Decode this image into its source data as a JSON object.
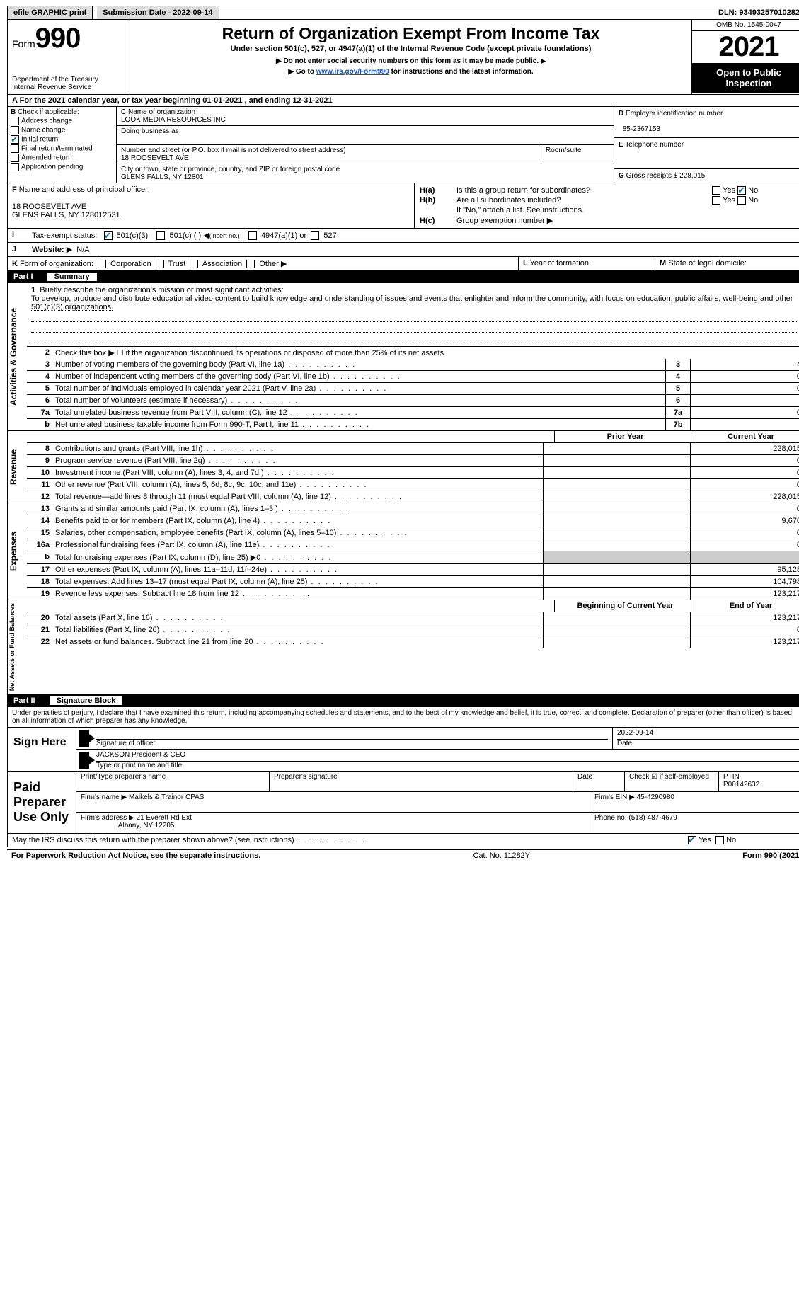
{
  "top": {
    "efile": "efile GRAPHIC print",
    "submission": "Submission Date - 2022-09-14",
    "dln": "DLN: 93493257010282"
  },
  "header": {
    "form_prefix": "Form",
    "form_number": "990",
    "dept": "Department of the Treasury",
    "irs": "Internal Revenue Service",
    "title": "Return of Organization Exempt From Income Tax",
    "subtitle": "Under section 501(c), 527, or 4947(a)(1) of the Internal Revenue Code (except private foundations)",
    "note1": "Do not enter social security numbers on this form as it may be made public.",
    "note2_pre": "Go to ",
    "note2_link": "www.irs.gov/Form990",
    "note2_post": " for instructions and the latest information.",
    "omb": "OMB No. 1545-0047",
    "year": "2021",
    "open": "Open to Public Inspection"
  },
  "row_a": "For the 2021 calendar year, or tax year beginning 01-01-2021    , and ending 12-31-2021",
  "section_b": {
    "heading": "Check if applicable:",
    "addr_change": "Address change",
    "name_change": "Name change",
    "initial": "Initial return",
    "final": "Final return/terminated",
    "amended": "Amended return",
    "app_pending": "Application pending",
    "c_label": "Name of organization",
    "c_name": "LOOK MEDIA RESOURCES INC",
    "dba_label": "Doing business as",
    "street_label": "Number and street (or P.O. box if mail is not delivered to street address)",
    "street": "18 ROOSEVELT AVE",
    "room_label": "Room/suite",
    "city_label": "City or town, state or province, country, and ZIP or foreign postal code",
    "city": "GLENS FALLS, NY  12801",
    "d_label": "Employer identification number",
    "d_ein": "85-2367153",
    "e_label": "Telephone number",
    "g_label": "Gross receipts $",
    "g_value": "228,015"
  },
  "section_f": {
    "f_label": "Name and address of principal officer:",
    "f_addr1": "18 ROOSEVELT AVE",
    "f_addr2": "GLENS FALLS, NY  128012531",
    "ha_label": "Is this a group return for subordinates?",
    "hb_label": "Are all subordinates included?",
    "hb_note": "If \"No,\" attach a list. See instructions.",
    "hc_label": "Group exemption number"
  },
  "row_i": {
    "label": "Tax-exempt status:",
    "opt1": "501(c)(3)",
    "opt2": "501(c) (   )",
    "opt2_note": "(insert no.)",
    "opt3": "4947(a)(1) or",
    "opt4": "527"
  },
  "row_j": {
    "label": "Website:",
    "value": "N/A"
  },
  "row_k": {
    "label": "Form of organization:",
    "corp": "Corporation",
    "trust": "Trust",
    "assoc": "Association",
    "other": "Other",
    "l_label": "Year of formation:",
    "m_label": "State of legal domicile:"
  },
  "part1": {
    "header_label": "Part I",
    "header_title": "Summary",
    "side_ag": "Activities & Governance",
    "side_rev": "Revenue",
    "side_exp": "Expenses",
    "side_na": "Net Assets or Fund Balances",
    "q1_label": "Briefly describe the organization's mission or most significant activities:",
    "q1_text": "To develop, produce and distribute educational video content to build knowledge and understanding of issues and events that enlightenand inform the community, with focus on education, public affairs, well-being and other 501(c)(3) organizations.",
    "q2": "Check this box ▶ ☐  if the organization discontinued its operations or disposed of more than 25% of its net assets.",
    "lines_ag": [
      {
        "n": "3",
        "t": "Number of voting members of the governing body (Part VI, line 1a)",
        "box": "3",
        "v": "4"
      },
      {
        "n": "4",
        "t": "Number of independent voting members of the governing body (Part VI, line 1b)",
        "box": "4",
        "v": "0"
      },
      {
        "n": "5",
        "t": "Total number of individuals employed in calendar year 2021 (Part V, line 2a)",
        "box": "5",
        "v": "0"
      },
      {
        "n": "6",
        "t": "Total number of volunteers (estimate if necessary)",
        "box": "6",
        "v": ""
      },
      {
        "n": "7a",
        "t": "Total unrelated business revenue from Part VIII, column (C), line 12",
        "box": "7a",
        "v": "0"
      },
      {
        "n": "b",
        "t": "Net unrelated business taxable income from Form 990-T, Part I, line 11",
        "box": "7b",
        "v": ""
      }
    ],
    "prior_label": "Prior Year",
    "current_label": "Current Year",
    "lines_rev": [
      {
        "n": "8",
        "t": "Contributions and grants (Part VIII, line 1h)",
        "p": "",
        "c": "228,015"
      },
      {
        "n": "9",
        "t": "Program service revenue (Part VIII, line 2g)",
        "p": "",
        "c": "0"
      },
      {
        "n": "10",
        "t": "Investment income (Part VIII, column (A), lines 3, 4, and 7d )",
        "p": "",
        "c": "0"
      },
      {
        "n": "11",
        "t": "Other revenue (Part VIII, column (A), lines 5, 6d, 8c, 9c, 10c, and 11e)",
        "p": "",
        "c": "0"
      },
      {
        "n": "12",
        "t": "Total revenue—add lines 8 through 11 (must equal Part VIII, column (A), line 12)",
        "p": "",
        "c": "228,015"
      }
    ],
    "lines_exp": [
      {
        "n": "13",
        "t": "Grants and similar amounts paid (Part IX, column (A), lines 1–3 )",
        "p": "",
        "c": "0"
      },
      {
        "n": "14",
        "t": "Benefits paid to or for members (Part IX, column (A), line 4)",
        "p": "",
        "c": "9,670"
      },
      {
        "n": "15",
        "t": "Salaries, other compensation, employee benefits (Part IX, column (A), lines 5–10)",
        "p": "",
        "c": "0"
      },
      {
        "n": "16a",
        "t": "Professional fundraising fees (Part IX, column (A), line 11e)",
        "p": "",
        "c": "0"
      },
      {
        "n": "b",
        "t": "Total fundraising expenses (Part IX, column (D), line 25) ▶0",
        "p": "gray",
        "c": "gray"
      },
      {
        "n": "17",
        "t": "Other expenses (Part IX, column (A), lines 11a–11d, 11f–24e)",
        "p": "",
        "c": "95,128"
      },
      {
        "n": "18",
        "t": "Total expenses. Add lines 13–17 (must equal Part IX, column (A), line 25)",
        "p": "",
        "c": "104,798"
      },
      {
        "n": "19",
        "t": "Revenue less expenses. Subtract line 18 from line 12",
        "p": "",
        "c": "123,217"
      }
    ],
    "begin_label": "Beginning of Current Year",
    "end_label": "End of Year",
    "lines_na": [
      {
        "n": "20",
        "t": "Total assets (Part X, line 16)",
        "p": "",
        "c": "123,217"
      },
      {
        "n": "21",
        "t": "Total liabilities (Part X, line 26)",
        "p": "",
        "c": "0"
      },
      {
        "n": "22",
        "t": "Net assets or fund balances. Subtract line 21 from line 20",
        "p": "",
        "c": "123,217"
      }
    ]
  },
  "part2": {
    "header_label": "Part II",
    "header_title": "Signature Block",
    "declaration": "Under penalties of perjury, I declare that I have examined this return, including accompanying schedules and statements, and to the best of my knowledge and belief, it is true, correct, and complete. Declaration of preparer (other than officer) is based on all information of which preparer has any knowledge.",
    "sign_here": "Sign Here",
    "sig_officer": "Signature of officer",
    "sig_date": "2022-09-14",
    "date_label": "Date",
    "name_title": "JACKSON  President & CEO",
    "name_label": "Type or print name and title",
    "paid": "Paid Preparer Use Only",
    "prep_name_label": "Print/Type preparer's name",
    "prep_sig_label": "Preparer's signature",
    "prep_date_label": "Date",
    "check_self": "Check ☑ if self-employed",
    "ptin_label": "PTIN",
    "ptin": "P00142632",
    "firm_name_label": "Firm's name   ▶",
    "firm_name": "Maikels & Trainor CPAS",
    "firm_ein_label": "Firm's EIN ▶",
    "firm_ein": "45-4290980",
    "firm_addr_label": "Firm's address ▶",
    "firm_addr1": "21 Everett Rd Ext",
    "firm_addr2": "Albany, NY  12205",
    "phone_label": "Phone no.",
    "phone": "(518) 487-4679",
    "discuss": "May the IRS discuss this return with the preparer shown above? (see instructions)"
  },
  "footer": {
    "left": "For Paperwork Reduction Act Notice, see the separate instructions.",
    "mid": "Cat. No. 11282Y",
    "right": "Form 990 (2021)"
  },
  "labels": {
    "yes": "Yes",
    "no": "No",
    "b_prefix": "B",
    "c_prefix": "C",
    "d_prefix": "D",
    "e_prefix": "E",
    "f_prefix": "F",
    "g_prefix": "G",
    "ha_prefix": "H(a)",
    "hb_prefix": "H(b)",
    "hc_prefix": "H(c)",
    "i_prefix": "I",
    "j_prefix": "J",
    "k_prefix": "K",
    "l_prefix": "L",
    "m_prefix": "M"
  }
}
